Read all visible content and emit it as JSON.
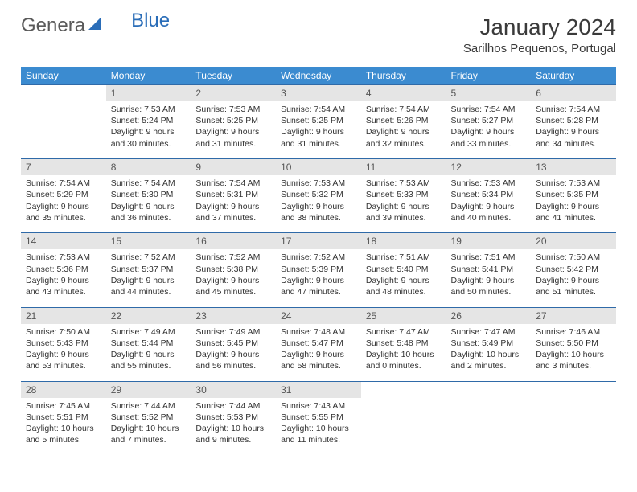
{
  "logo": {
    "part1": "Genera",
    "part2": "Blue"
  },
  "title": "January 2024",
  "location": "Sarilhos Pequenos, Portugal",
  "colors": {
    "header_bg": "#3b8bd0",
    "daynum_bg": "#e5e5e5",
    "border_top": "#2f6aa8",
    "logo_blue": "#2a6db8"
  },
  "day_headers": [
    "Sunday",
    "Monday",
    "Tuesday",
    "Wednesday",
    "Thursday",
    "Friday",
    "Saturday"
  ],
  "weeks": [
    [
      null,
      {
        "num": "1",
        "sunrise": "Sunrise: 7:53 AM",
        "sunset": "Sunset: 5:24 PM",
        "day1": "Daylight: 9 hours",
        "day2": "and 30 minutes."
      },
      {
        "num": "2",
        "sunrise": "Sunrise: 7:53 AM",
        "sunset": "Sunset: 5:25 PM",
        "day1": "Daylight: 9 hours",
        "day2": "and 31 minutes."
      },
      {
        "num": "3",
        "sunrise": "Sunrise: 7:54 AM",
        "sunset": "Sunset: 5:25 PM",
        "day1": "Daylight: 9 hours",
        "day2": "and 31 minutes."
      },
      {
        "num": "4",
        "sunrise": "Sunrise: 7:54 AM",
        "sunset": "Sunset: 5:26 PM",
        "day1": "Daylight: 9 hours",
        "day2": "and 32 minutes."
      },
      {
        "num": "5",
        "sunrise": "Sunrise: 7:54 AM",
        "sunset": "Sunset: 5:27 PM",
        "day1": "Daylight: 9 hours",
        "day2": "and 33 minutes."
      },
      {
        "num": "6",
        "sunrise": "Sunrise: 7:54 AM",
        "sunset": "Sunset: 5:28 PM",
        "day1": "Daylight: 9 hours",
        "day2": "and 34 minutes."
      }
    ],
    [
      {
        "num": "7",
        "sunrise": "Sunrise: 7:54 AM",
        "sunset": "Sunset: 5:29 PM",
        "day1": "Daylight: 9 hours",
        "day2": "and 35 minutes."
      },
      {
        "num": "8",
        "sunrise": "Sunrise: 7:54 AM",
        "sunset": "Sunset: 5:30 PM",
        "day1": "Daylight: 9 hours",
        "day2": "and 36 minutes."
      },
      {
        "num": "9",
        "sunrise": "Sunrise: 7:54 AM",
        "sunset": "Sunset: 5:31 PM",
        "day1": "Daylight: 9 hours",
        "day2": "and 37 minutes."
      },
      {
        "num": "10",
        "sunrise": "Sunrise: 7:53 AM",
        "sunset": "Sunset: 5:32 PM",
        "day1": "Daylight: 9 hours",
        "day2": "and 38 minutes."
      },
      {
        "num": "11",
        "sunrise": "Sunrise: 7:53 AM",
        "sunset": "Sunset: 5:33 PM",
        "day1": "Daylight: 9 hours",
        "day2": "and 39 minutes."
      },
      {
        "num": "12",
        "sunrise": "Sunrise: 7:53 AM",
        "sunset": "Sunset: 5:34 PM",
        "day1": "Daylight: 9 hours",
        "day2": "and 40 minutes."
      },
      {
        "num": "13",
        "sunrise": "Sunrise: 7:53 AM",
        "sunset": "Sunset: 5:35 PM",
        "day1": "Daylight: 9 hours",
        "day2": "and 41 minutes."
      }
    ],
    [
      {
        "num": "14",
        "sunrise": "Sunrise: 7:53 AM",
        "sunset": "Sunset: 5:36 PM",
        "day1": "Daylight: 9 hours",
        "day2": "and 43 minutes."
      },
      {
        "num": "15",
        "sunrise": "Sunrise: 7:52 AM",
        "sunset": "Sunset: 5:37 PM",
        "day1": "Daylight: 9 hours",
        "day2": "and 44 minutes."
      },
      {
        "num": "16",
        "sunrise": "Sunrise: 7:52 AM",
        "sunset": "Sunset: 5:38 PM",
        "day1": "Daylight: 9 hours",
        "day2": "and 45 minutes."
      },
      {
        "num": "17",
        "sunrise": "Sunrise: 7:52 AM",
        "sunset": "Sunset: 5:39 PM",
        "day1": "Daylight: 9 hours",
        "day2": "and 47 minutes."
      },
      {
        "num": "18",
        "sunrise": "Sunrise: 7:51 AM",
        "sunset": "Sunset: 5:40 PM",
        "day1": "Daylight: 9 hours",
        "day2": "and 48 minutes."
      },
      {
        "num": "19",
        "sunrise": "Sunrise: 7:51 AM",
        "sunset": "Sunset: 5:41 PM",
        "day1": "Daylight: 9 hours",
        "day2": "and 50 minutes."
      },
      {
        "num": "20",
        "sunrise": "Sunrise: 7:50 AM",
        "sunset": "Sunset: 5:42 PM",
        "day1": "Daylight: 9 hours",
        "day2": "and 51 minutes."
      }
    ],
    [
      {
        "num": "21",
        "sunrise": "Sunrise: 7:50 AM",
        "sunset": "Sunset: 5:43 PM",
        "day1": "Daylight: 9 hours",
        "day2": "and 53 minutes."
      },
      {
        "num": "22",
        "sunrise": "Sunrise: 7:49 AM",
        "sunset": "Sunset: 5:44 PM",
        "day1": "Daylight: 9 hours",
        "day2": "and 55 minutes."
      },
      {
        "num": "23",
        "sunrise": "Sunrise: 7:49 AM",
        "sunset": "Sunset: 5:45 PM",
        "day1": "Daylight: 9 hours",
        "day2": "and 56 minutes."
      },
      {
        "num": "24",
        "sunrise": "Sunrise: 7:48 AM",
        "sunset": "Sunset: 5:47 PM",
        "day1": "Daylight: 9 hours",
        "day2": "and 58 minutes."
      },
      {
        "num": "25",
        "sunrise": "Sunrise: 7:47 AM",
        "sunset": "Sunset: 5:48 PM",
        "day1": "Daylight: 10 hours",
        "day2": "and 0 minutes."
      },
      {
        "num": "26",
        "sunrise": "Sunrise: 7:47 AM",
        "sunset": "Sunset: 5:49 PM",
        "day1": "Daylight: 10 hours",
        "day2": "and 2 minutes."
      },
      {
        "num": "27",
        "sunrise": "Sunrise: 7:46 AM",
        "sunset": "Sunset: 5:50 PM",
        "day1": "Daylight: 10 hours",
        "day2": "and 3 minutes."
      }
    ],
    [
      {
        "num": "28",
        "sunrise": "Sunrise: 7:45 AM",
        "sunset": "Sunset: 5:51 PM",
        "day1": "Daylight: 10 hours",
        "day2": "and 5 minutes."
      },
      {
        "num": "29",
        "sunrise": "Sunrise: 7:44 AM",
        "sunset": "Sunset: 5:52 PM",
        "day1": "Daylight: 10 hours",
        "day2": "and 7 minutes."
      },
      {
        "num": "30",
        "sunrise": "Sunrise: 7:44 AM",
        "sunset": "Sunset: 5:53 PM",
        "day1": "Daylight: 10 hours",
        "day2": "and 9 minutes."
      },
      {
        "num": "31",
        "sunrise": "Sunrise: 7:43 AM",
        "sunset": "Sunset: 5:55 PM",
        "day1": "Daylight: 10 hours",
        "day2": "and 11 minutes."
      },
      null,
      null,
      null
    ]
  ]
}
